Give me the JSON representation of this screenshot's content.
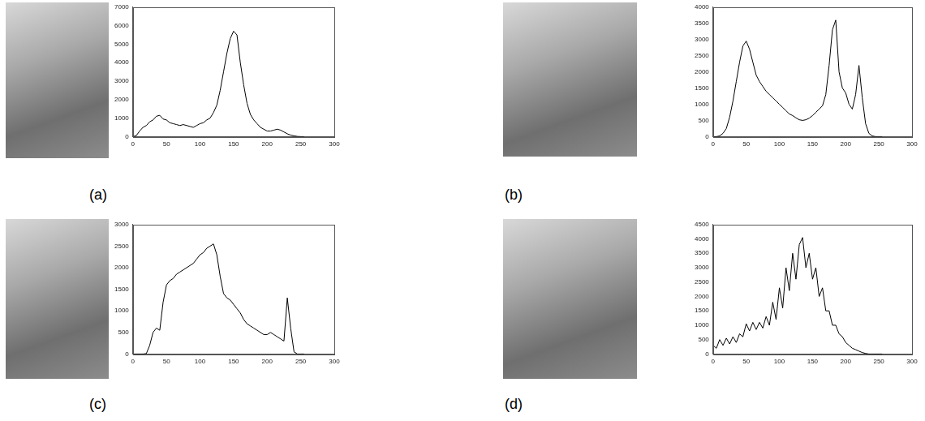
{
  "chart_data": [
    {
      "type": "line",
      "caption": "(a)",
      "color": "#000000",
      "grid": false,
      "x": [
        0,
        5,
        10,
        15,
        20,
        25,
        30,
        35,
        40,
        45,
        50,
        55,
        60,
        65,
        70,
        75,
        80,
        85,
        90,
        95,
        100,
        105,
        110,
        115,
        120,
        125,
        130,
        135,
        140,
        145,
        150,
        155,
        160,
        165,
        170,
        175,
        180,
        185,
        190,
        195,
        200,
        205,
        210,
        215,
        220,
        225,
        230,
        235,
        240,
        245,
        250,
        255
      ],
      "values": [
        0,
        50,
        300,
        500,
        600,
        800,
        900,
        1100,
        1150,
        950,
        900,
        750,
        700,
        650,
        600,
        650,
        600,
        550,
        500,
        600,
        700,
        750,
        900,
        1000,
        1300,
        1700,
        2500,
        3500,
        4500,
        5300,
        5700,
        5500,
        4000,
        2800,
        1800,
        1200,
        900,
        700,
        500,
        400,
        300,
        300,
        350,
        400,
        350,
        250,
        150,
        80,
        40,
        10,
        0,
        0
      ],
      "xlim": [
        0,
        300
      ],
      "xticks": [
        0,
        50,
        100,
        150,
        200,
        250,
        300
      ],
      "ylim": [
        0,
        7000
      ],
      "yticks": [
        0,
        1000,
        2000,
        3000,
        4000,
        5000,
        6000,
        7000
      ]
    },
    {
      "type": "line",
      "caption": "(b)",
      "color": "#000000",
      "grid": false,
      "x": [
        0,
        5,
        10,
        15,
        20,
        25,
        30,
        35,
        40,
        45,
        50,
        55,
        60,
        65,
        70,
        75,
        80,
        85,
        90,
        95,
        100,
        105,
        110,
        115,
        120,
        125,
        130,
        135,
        140,
        145,
        150,
        155,
        160,
        165,
        170,
        175,
        180,
        185,
        190,
        195,
        200,
        205,
        210,
        215,
        220,
        225,
        230,
        235,
        240,
        245,
        250,
        255
      ],
      "values": [
        0,
        0,
        20,
        100,
        250,
        600,
        1100,
        1700,
        2300,
        2800,
        2950,
        2700,
        2300,
        1900,
        1700,
        1550,
        1400,
        1300,
        1200,
        1100,
        1000,
        900,
        800,
        700,
        650,
        580,
        520,
        500,
        520,
        570,
        650,
        750,
        850,
        950,
        1300,
        2200,
        3300,
        3600,
        2000,
        1500,
        1350,
        1000,
        850,
        1300,
        2200,
        1200,
        400,
        100,
        20,
        0,
        0,
        0
      ],
      "xlim": [
        0,
        300
      ],
      "xticks": [
        0,
        50,
        100,
        150,
        200,
        250,
        300
      ],
      "ylim": [
        0,
        4000
      ],
      "yticks": [
        0,
        500,
        1000,
        1500,
        2000,
        2500,
        3000,
        3500,
        4000
      ]
    },
    {
      "type": "line",
      "caption": "(c)",
      "color": "#000000",
      "grid": false,
      "x": [
        0,
        5,
        10,
        15,
        20,
        25,
        30,
        35,
        40,
        45,
        50,
        55,
        60,
        65,
        70,
        75,
        80,
        85,
        90,
        95,
        100,
        105,
        110,
        115,
        120,
        125,
        130,
        135,
        140,
        145,
        150,
        155,
        160,
        165,
        170,
        175,
        180,
        185,
        190,
        195,
        200,
        205,
        210,
        215,
        220,
        225,
        230,
        235,
        240,
        245,
        250,
        255
      ],
      "values": [
        0,
        0,
        0,
        0,
        10,
        200,
        500,
        600,
        550,
        1200,
        1600,
        1700,
        1750,
        1850,
        1900,
        1950,
        2000,
        2050,
        2100,
        2200,
        2300,
        2350,
        2450,
        2500,
        2550,
        2300,
        1800,
        1400,
        1300,
        1250,
        1150,
        1050,
        950,
        800,
        700,
        650,
        600,
        550,
        500,
        450,
        450,
        500,
        450,
        400,
        350,
        300,
        1300,
        600,
        50,
        0,
        0,
        0
      ],
      "xlim": [
        0,
        300
      ],
      "xticks": [
        0,
        50,
        100,
        150,
        200,
        250,
        300
      ],
      "ylim": [
        0,
        3000
      ],
      "yticks": [
        0,
        500,
        1000,
        1500,
        2000,
        2500,
        3000
      ]
    },
    {
      "type": "line",
      "caption": "(d)",
      "color": "#000000",
      "grid": false,
      "x": [
        0,
        5,
        10,
        15,
        20,
        25,
        30,
        35,
        40,
        45,
        50,
        55,
        60,
        65,
        70,
        75,
        80,
        85,
        90,
        95,
        100,
        105,
        110,
        115,
        120,
        125,
        130,
        135,
        140,
        145,
        150,
        155,
        160,
        165,
        170,
        175,
        180,
        185,
        190,
        195,
        200,
        205,
        210,
        215,
        220,
        225,
        230,
        235,
        240,
        245,
        250,
        255
      ],
      "values": [
        300,
        200,
        500,
        300,
        550,
        350,
        600,
        400,
        700,
        600,
        1050,
        800,
        1100,
        850,
        1100,
        900,
        1300,
        1000,
        1800,
        1200,
        2300,
        1600,
        3000,
        2200,
        3500,
        2600,
        3800,
        4050,
        3000,
        3500,
        2600,
        3000,
        2000,
        2300,
        1500,
        1500,
        1000,
        1000,
        700,
        600,
        400,
        300,
        200,
        150,
        100,
        50,
        20,
        0,
        0,
        0,
        0,
        0
      ],
      "xlim": [
        0,
        300
      ],
      "xticks": [
        0,
        50,
        100,
        150,
        200,
        250,
        300
      ],
      "ylim": [
        0,
        4500
      ],
      "yticks": [
        0,
        500,
        1000,
        1500,
        2000,
        2500,
        3000,
        3500,
        4000,
        4500
      ]
    }
  ]
}
